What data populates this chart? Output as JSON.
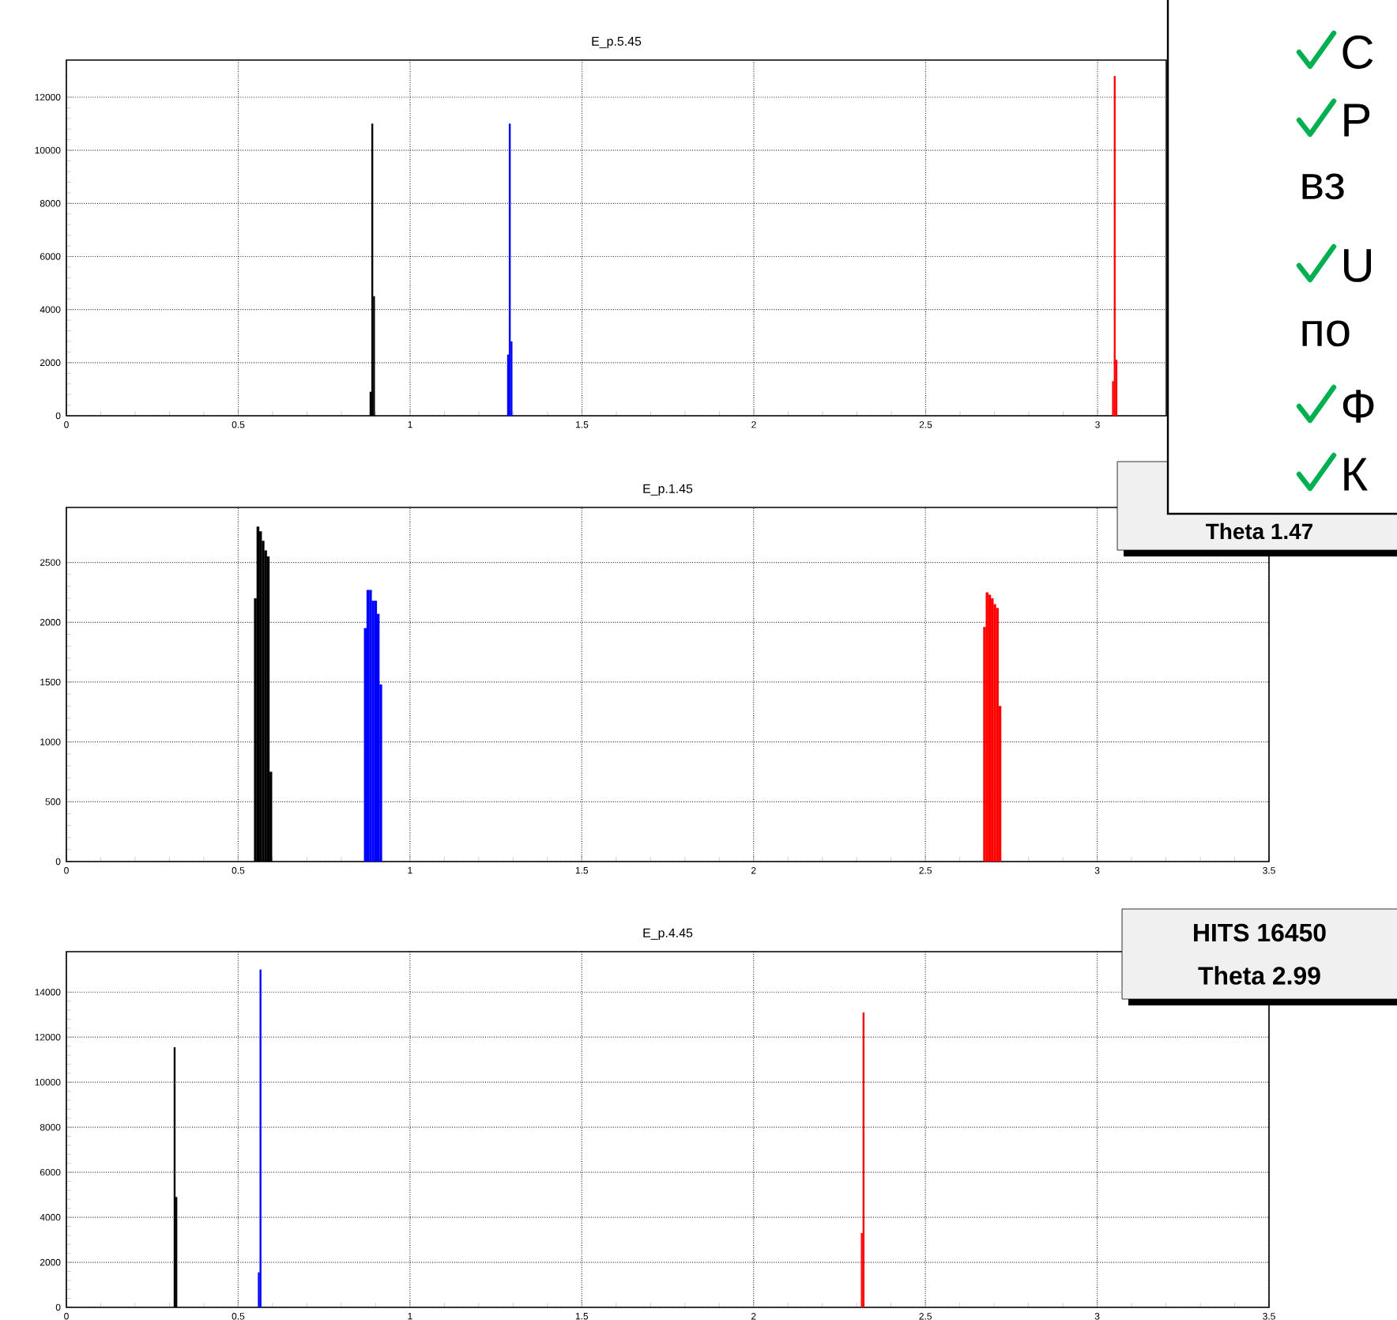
{
  "chart_data": [
    {
      "type": "bar",
      "title": "E_p.5.45",
      "xlim": [
        0,
        3.2
      ],
      "ylim": [
        0,
        13400
      ],
      "xticks": [
        0,
        0.5,
        1,
        1.5,
        2,
        2.5,
        3
      ],
      "yticks": [
        0,
        2000,
        4000,
        6000,
        8000,
        10000,
        12000
      ],
      "grid": true,
      "series": [
        {
          "color": "#000000",
          "x": [
            0.885,
            0.89,
            0.895
          ],
          "values": [
            900,
            11000,
            4500
          ]
        },
        {
          "color": "#0000ff",
          "x": [
            1.285,
            1.29,
            1.295
          ],
          "values": [
            2300,
            11000,
            2800
          ]
        },
        {
          "color": "#ff0000",
          "x": [
            3.045,
            3.05,
            3.055
          ],
          "values": [
            1300,
            12800,
            2100
          ]
        }
      ],
      "annotations": [
        "С",
        "Р",
        "вз",
        "U",
        "по",
        "Ф",
        "К"
      ]
    },
    {
      "type": "bar",
      "title": "E_p.1.45",
      "xlim": [
        0,
        3.5
      ],
      "ylim": [
        0,
        2960
      ],
      "xticks": [
        0,
        0.5,
        1,
        1.5,
        2,
        2.5,
        3,
        3.5
      ],
      "yticks": [
        0,
        500,
        1000,
        1500,
        2000,
        2500
      ],
      "grid": true,
      "series": [
        {
          "color": "#000000",
          "x": [
            0.55,
            0.5575,
            0.565,
            0.5725,
            0.58,
            0.5875,
            0.595
          ],
          "values": [
            2200,
            2800,
            2760,
            2680,
            2600,
            2550,
            750
          ]
        },
        {
          "color": "#0000ff",
          "x": [
            0.87,
            0.8775,
            0.885,
            0.8925,
            0.9,
            0.9075,
            0.915
          ],
          "values": [
            1950,
            2270,
            2270,
            2180,
            2180,
            2070,
            1480
          ]
        },
        {
          "color": "#ff0000",
          "x": [
            2.672,
            2.6795,
            2.687,
            2.6945,
            2.702,
            2.7095,
            2.717
          ],
          "values": [
            1960,
            2250,
            2230,
            2200,
            2150,
            2120,
            1300
          ]
        }
      ],
      "annotations": [
        "Theta 1.47"
      ]
    },
    {
      "type": "bar",
      "title": "E_p.4.45",
      "xlim": [
        0,
        3.5
      ],
      "ylim": [
        0,
        15800
      ],
      "xticks": [
        0,
        0.5,
        1,
        1.5,
        2,
        2.5,
        3,
        3.5
      ],
      "yticks": [
        0,
        2000,
        4000,
        6000,
        8000,
        10000,
        12000,
        14000
      ],
      "grid": true,
      "series": [
        {
          "color": "#000000",
          "x": [
            0.315,
            0.32
          ],
          "values": [
            11550,
            4900
          ]
        },
        {
          "color": "#0000ff",
          "x": [
            0.56,
            0.565
          ],
          "values": [
            1550,
            15000
          ]
        },
        {
          "color": "#ff0000",
          "x": [
            2.315,
            2.32
          ],
          "values": [
            3300,
            13100
          ]
        }
      ],
      "annotations": [
        "HITS 16450",
        "Theta 2.99"
      ]
    }
  ]
}
